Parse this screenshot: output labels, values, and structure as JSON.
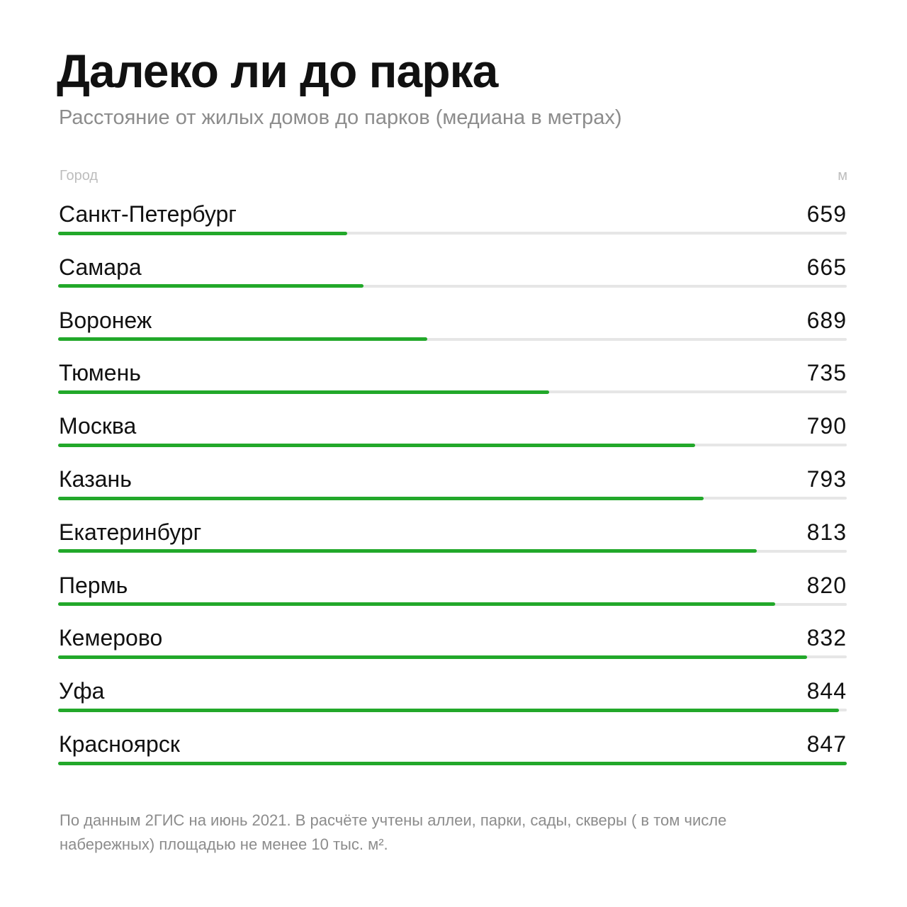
{
  "header": {
    "title": "Далеко ли до парка",
    "subtitle": "Расстояние от жилых домов до парков (медиана в метрах)"
  },
  "columns": {
    "city": "Город",
    "unit": "м"
  },
  "colors": {
    "bar": "#22a82a",
    "track": "#e6e6e6",
    "muted_text": "#8c8c8c"
  },
  "chart_data": {
    "type": "bar",
    "orientation": "horizontal",
    "title": "Далеко ли до парка",
    "subtitle": "Расстояние от жилых домов до парков (медиана в метрах)",
    "categories": [
      "Санкт-Петербург",
      "Самара",
      "Воронеж",
      "Тюмень",
      "Москва",
      "Казань",
      "Екатеринбург",
      "Пермь",
      "Кемерово",
      "Уфа",
      "Красноярск"
    ],
    "values": [
      659,
      665,
      689,
      735,
      790,
      793,
      813,
      820,
      832,
      844,
      847
    ],
    "xlim": [
      550,
      847
    ],
    "grid": false,
    "data_labels": true
  },
  "footnote": "По данным 2ГИС на июнь 2021. В расчёте учтены аллеи, парки, сады, скверы ( в том числе набережных) площадью не менее 10 тыс. м²."
}
